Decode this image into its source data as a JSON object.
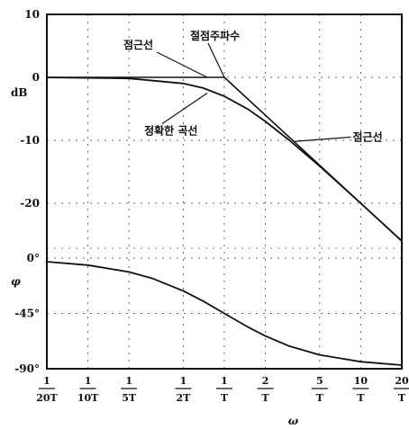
{
  "chart_data": {
    "type": "line",
    "x_scale": "log",
    "x_ticks": [
      {
        "value": 0.05,
        "num": "1",
        "den": "20T"
      },
      {
        "value": 0.1,
        "num": "1",
        "den": "10T"
      },
      {
        "value": 0.2,
        "num": "1",
        "den": "5T"
      },
      {
        "value": 0.5,
        "num": "1",
        "den": "2T"
      },
      {
        "value": 1,
        "num": "1",
        "den": "T"
      },
      {
        "value": 2,
        "num": "2",
        "den": "T"
      },
      {
        "value": 5,
        "num": "5",
        "den": "T"
      },
      {
        "value": 10,
        "num": "10",
        "den": "T"
      },
      {
        "value": 20,
        "num": "20",
        "den": "T"
      }
    ],
    "xlabel": "ω",
    "magnitude": {
      "ylabel": "dB",
      "ylim": [
        -26,
        10
      ],
      "yticks": [
        "10",
        "0",
        "-10",
        "-20"
      ],
      "ytick_values": [
        10,
        0,
        -10,
        -20
      ],
      "series": [
        {
          "x": [
            0.05,
            1,
            20
          ],
          "y": [
            0,
            0,
            -26
          ]
        },
        {
          "x": [
            0.05,
            0.2,
            0.5,
            0.7,
            1,
            1.5,
            2,
            3,
            5,
            10,
            20
          ],
          "y": [
            -0.01,
            -0.17,
            -0.97,
            -1.7,
            -3.0,
            -5.1,
            -7.0,
            -10.0,
            -14.1,
            -20.0,
            -26.0
          ]
        }
      ],
      "annotations": [
        {
          "text": "점근선",
          "target_x": 0.75,
          "target_y": 0
        },
        {
          "text": "절점주파수",
          "target_x": 1,
          "target_y": 0
        },
        {
          "text": "점근선",
          "target_x": 3.2,
          "target_y": -10.2
        },
        {
          "text": "정확한 곡선",
          "target_x": 0.75,
          "target_y": -2.5
        }
      ]
    },
    "phase": {
      "ylabel": "φ",
      "ylim": [
        -90,
        0
      ],
      "yticks": [
        "0°",
        "-45°",
        "-90°"
      ],
      "ytick_values": [
        0,
        -45,
        -90
      ],
      "series": [
        {
          "x": [
            0.05,
            0.1,
            0.2,
            0.3,
            0.5,
            0.7,
            1,
            1.5,
            2,
            3,
            5,
            10,
            20
          ],
          "y": [
            -2.9,
            -5.7,
            -11.3,
            -16.7,
            -26.6,
            -35.0,
            -45.0,
            -56.3,
            -63.4,
            -71.6,
            -78.7,
            -84.3,
            -87.1
          ]
        }
      ]
    },
    "grid": "dotted"
  }
}
